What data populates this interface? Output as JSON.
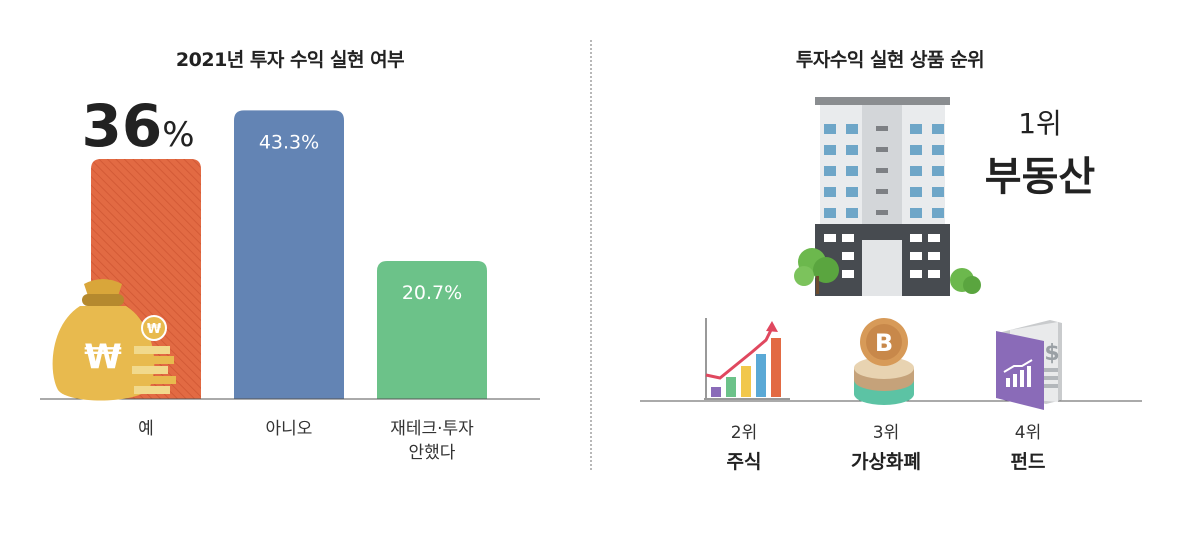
{
  "chart_data": [
    {
      "type": "bar",
      "title": "2021년 투자 수익 실현 여부",
      "categories": [
        "예",
        "아니오",
        "재테크·투자 안했다"
      ],
      "category_lines": [
        [
          "예"
        ],
        [
          "아니오"
        ],
        [
          "재테크·투자",
          "안했다"
        ]
      ],
      "values": [
        36,
        43.3,
        20.7
      ],
      "value_labels": [
        "36%",
        "43.3%",
        "20.7%"
      ],
      "highlight": {
        "number": "36",
        "unit": "%"
      },
      "colors": [
        "#e26a43",
        "#6384b4",
        "#6cc289"
      ],
      "ylim": [
        0,
        45
      ],
      "grid": false
    },
    {
      "type": "table",
      "title": "투자수익 실현 상품 순위",
      "items": [
        {
          "rank": "1위",
          "name": "부동산",
          "icon": "building-icon"
        },
        {
          "rank": "2위",
          "name": "주식",
          "icon": "stock-chart-icon"
        },
        {
          "rank": "3위",
          "name": "가상화폐",
          "icon": "bitcoin-coin-icon"
        },
        {
          "rank": "4위",
          "name": "펀드",
          "icon": "fund-book-icon"
        }
      ]
    }
  ],
  "decor": {
    "money_bag_icon": "money-bag-icon",
    "won_symbol": "₩",
    "bitcoin_symbol": "B",
    "dollar_symbol": "$"
  }
}
